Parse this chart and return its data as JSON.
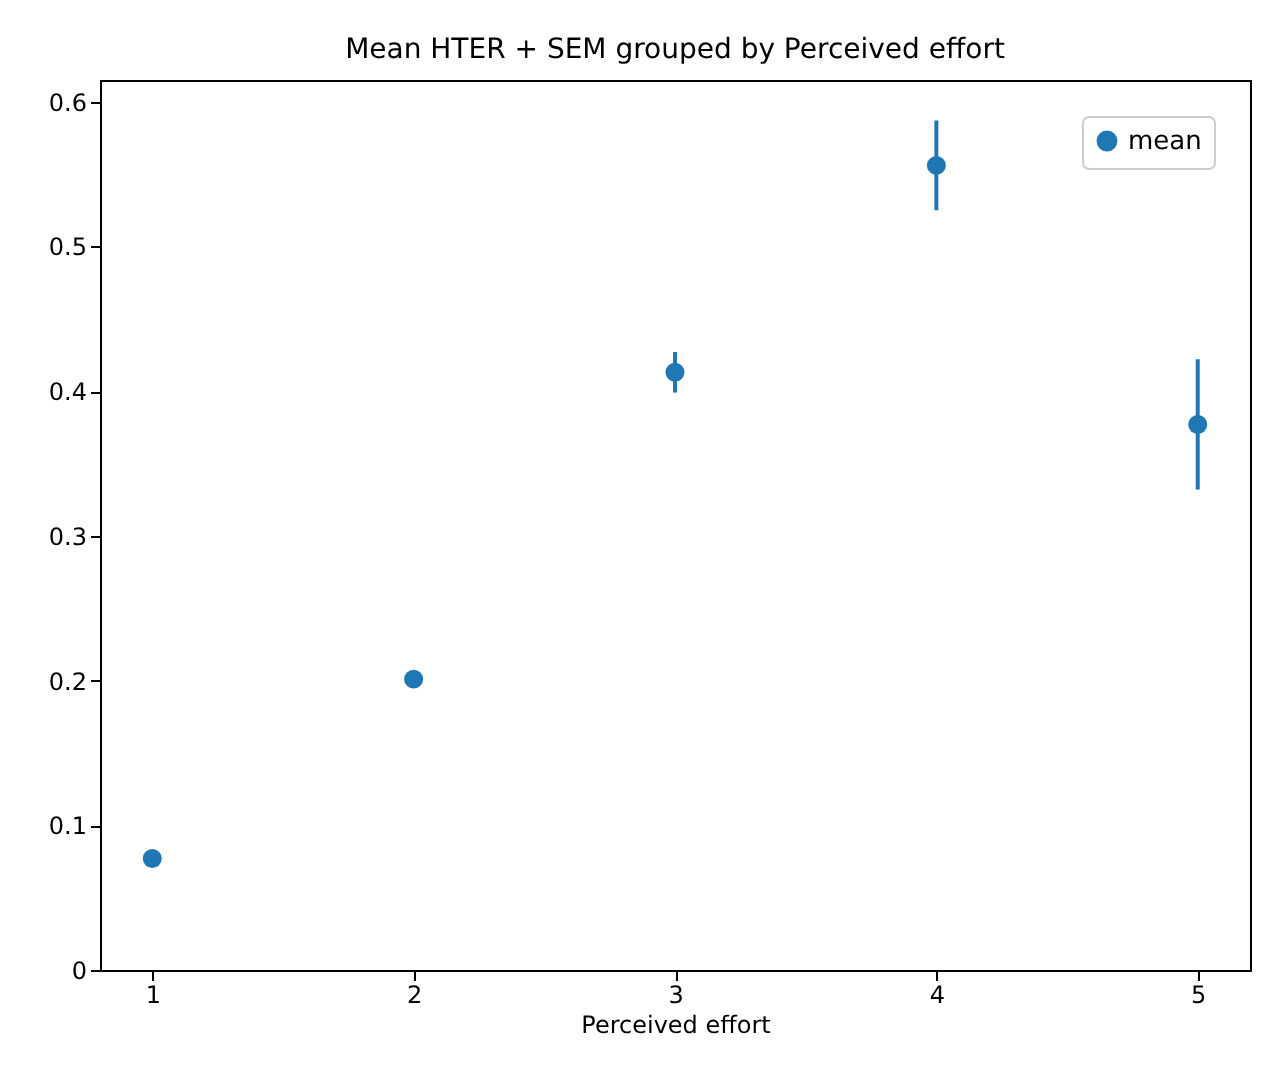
{
  "chart_data": {
    "type": "scatter",
    "title": "Mean HTER + SEM grouped by Perceived effort",
    "xlabel": "Perceived effort",
    "x": [
      1,
      2,
      3,
      4,
      5
    ],
    "series": [
      {
        "name": "mean",
        "color": "#1f77b4",
        "values": [
          0.077,
          0.201,
          0.413,
          0.556,
          0.377
        ],
        "errors": [
          0.003,
          0.005,
          0.014,
          0.031,
          0.045
        ]
      }
    ],
    "xlim": [
      0.8,
      5.2
    ],
    "xticks": [
      1,
      2,
      3,
      4,
      5
    ],
    "ylim": [
      0,
      0.615
    ],
    "yticks": [
      0,
      0.1,
      0.2,
      0.3,
      0.4,
      0.5,
      0.6
    ],
    "legend": "top right",
    "marker": "circle",
    "grid": false
  }
}
